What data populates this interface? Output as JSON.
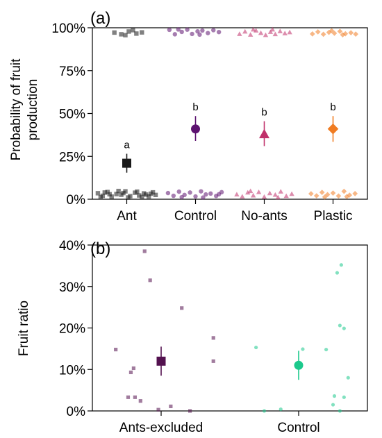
{
  "colors": {
    "ant": "#1a1a1a",
    "control_a": "#5c1270",
    "no_ants": "#c0306a",
    "plastic": "#f07c22",
    "ants_excluded": "#53114f",
    "control_b": "#1cc98c"
  },
  "chart_data": [
    {
      "panel": "(a)",
      "type": "scatter",
      "title": "",
      "xlabel": "",
      "ylabel": "Probability of fruit production",
      "ylabel_lines": [
        "Probability of fruit",
        "production"
      ],
      "categories": [
        "Ant",
        "Control",
        "No-ants",
        "Plastic"
      ],
      "ylim": [
        0,
        100
      ],
      "yticks": [
        0,
        25,
        50,
        75,
        100
      ],
      "ytick_labels": [
        "0%",
        "25%",
        "50%",
        "75%",
        "100%"
      ],
      "grid": false,
      "series": [
        {
          "category": "Ant",
          "marker": "square",
          "color_key": "ant",
          "estimate": 21,
          "ci": [
            15.5,
            26.5
          ],
          "letter": "a",
          "raw_points": [
            {
              "x": -0.18,
              "y": 97.2
            },
            {
              "x": -0.08,
              "y": 96.2
            },
            {
              "x": 0.03,
              "y": 97.8
            },
            {
              "x": 0.14,
              "y": 96.6
            },
            {
              "x": 0.22,
              "y": 97.3
            },
            {
              "x": -0.02,
              "y": 95.7
            },
            {
              "x": 0.09,
              "y": 98.6
            },
            {
              "x": -0.42,
              "y": 3.5
            },
            {
              "x": -0.35,
              "y": 2.0
            },
            {
              "x": -0.28,
              "y": 4.2
            },
            {
              "x": -0.22,
              "y": 1.5
            },
            {
              "x": -0.15,
              "y": 3.0
            },
            {
              "x": -0.08,
              "y": 2.6
            },
            {
              "x": -0.02,
              "y": 4.6
            },
            {
              "x": 0.05,
              "y": 1.8
            },
            {
              "x": 0.12,
              "y": 3.8
            },
            {
              "x": 0.18,
              "y": 2.2
            },
            {
              "x": 0.25,
              "y": 3.4
            },
            {
              "x": 0.32,
              "y": 1.6
            },
            {
              "x": 0.38,
              "y": 4.0
            },
            {
              "x": -0.38,
              "y": 1.2
            },
            {
              "x": -0.25,
              "y": 2.9
            },
            {
              "x": -0.12,
              "y": 4.8
            },
            {
              "x": 0.02,
              "y": 1.0
            },
            {
              "x": 0.15,
              "y": 4.4
            },
            {
              "x": 0.28,
              "y": 2.7
            },
            {
              "x": 0.35,
              "y": 3.2
            },
            {
              "x": -0.32,
              "y": 3.9
            },
            {
              "x": -0.05,
              "y": 3.6
            },
            {
              "x": 0.22,
              "y": 1.3
            },
            {
              "x": 0.42,
              "y": 2.5
            }
          ]
        },
        {
          "category": "Control",
          "marker": "circle",
          "color_key": "control_a",
          "estimate": 41,
          "ci": [
            34,
            48.5
          ],
          "letter": "b",
          "raw_points": [
            {
              "x": -0.38,
              "y": 98.8
            },
            {
              "x": -0.3,
              "y": 96.2
            },
            {
              "x": -0.2,
              "y": 97.6
            },
            {
              "x": -0.12,
              "y": 98.9
            },
            {
              "x": -0.05,
              "y": 96.4
            },
            {
              "x": 0.03,
              "y": 97.9
            },
            {
              "x": 0.1,
              "y": 98.4
            },
            {
              "x": 0.18,
              "y": 96.9
            },
            {
              "x": 0.26,
              "y": 98.6
            },
            {
              "x": 0.34,
              "y": 97.5
            },
            {
              "x": -0.25,
              "y": 99.0
            },
            {
              "x": 0.06,
              "y": 96.0
            },
            {
              "x": -0.4,
              "y": 3.6
            },
            {
              "x": -0.32,
              "y": 2.0
            },
            {
              "x": -0.24,
              "y": 4.4
            },
            {
              "x": -0.16,
              "y": 2.5
            },
            {
              "x": -0.08,
              "y": 3.9
            },
            {
              "x": 0.0,
              "y": 1.6
            },
            {
              "x": 0.08,
              "y": 4.6
            },
            {
              "x": 0.15,
              "y": 2.8
            },
            {
              "x": 0.22,
              "y": 3.3
            },
            {
              "x": 0.3,
              "y": 1.9
            },
            {
              "x": 0.38,
              "y": 4.1
            },
            {
              "x": -0.2,
              "y": 1.2
            },
            {
              "x": 0.11,
              "y": 1.0
            },
            {
              "x": 0.34,
              "y": 2.9
            }
          ]
        },
        {
          "category": "No-ants",
          "marker": "triangle",
          "color_key": "no_ants",
          "estimate": 38,
          "ci": [
            31,
            45.5
          ],
          "letter": "b",
          "raw_points": [
            {
              "x": -0.36,
              "y": 96.4
            },
            {
              "x": -0.28,
              "y": 97.8
            },
            {
              "x": -0.2,
              "y": 96.0
            },
            {
              "x": -0.12,
              "y": 98.4
            },
            {
              "x": -0.05,
              "y": 97.0
            },
            {
              "x": 0.02,
              "y": 95.8
            },
            {
              "x": 0.09,
              "y": 97.6
            },
            {
              "x": 0.16,
              "y": 96.3
            },
            {
              "x": 0.23,
              "y": 98.0
            },
            {
              "x": 0.3,
              "y": 96.8
            },
            {
              "x": 0.37,
              "y": 97.4
            },
            {
              "x": -0.16,
              "y": 99.0
            },
            {
              "x": 0.12,
              "y": 99.0
            },
            {
              "x": -0.4,
              "y": 2.8
            },
            {
              "x": -0.32,
              "y": 1.6
            },
            {
              "x": -0.24,
              "y": 3.9
            },
            {
              "x": -0.16,
              "y": 2.2
            },
            {
              "x": -0.08,
              "y": 4.2
            },
            {
              "x": 0.0,
              "y": 1.4
            },
            {
              "x": 0.08,
              "y": 3.5
            },
            {
              "x": 0.16,
              "y": 2.6
            },
            {
              "x": 0.24,
              "y": 4.5
            },
            {
              "x": 0.32,
              "y": 1.9
            },
            {
              "x": 0.4,
              "y": 3.1
            },
            {
              "x": -0.2,
              "y": 4.8
            },
            {
              "x": 0.2,
              "y": 1.1
            }
          ]
        },
        {
          "category": "Plastic",
          "marker": "diamond",
          "color_key": "plastic",
          "estimate": 41,
          "ci": [
            33.5,
            48.5
          ],
          "letter": "b",
          "raw_points": [
            {
              "x": -0.3,
              "y": 96.4
            },
            {
              "x": -0.22,
              "y": 97.6
            },
            {
              "x": -0.14,
              "y": 96.2
            },
            {
              "x": -0.06,
              "y": 97.3
            },
            {
              "x": 0.02,
              "y": 96.8
            },
            {
              "x": 0.1,
              "y": 97.9
            },
            {
              "x": 0.18,
              "y": 96.5
            },
            {
              "x": 0.26,
              "y": 97.1
            },
            {
              "x": 0.33,
              "y": 96.3
            },
            {
              "x": -0.02,
              "y": 98.3
            },
            {
              "x": 0.14,
              "y": 95.9
            },
            {
              "x": -0.32,
              "y": 3.2
            },
            {
              "x": -0.24,
              "y": 2.0
            },
            {
              "x": -0.16,
              "y": 4.0
            },
            {
              "x": -0.08,
              "y": 2.7
            },
            {
              "x": 0.0,
              "y": 3.6
            },
            {
              "x": 0.08,
              "y": 1.9
            },
            {
              "x": 0.16,
              "y": 4.6
            },
            {
              "x": 0.24,
              "y": 2.4
            },
            {
              "x": 0.32,
              "y": 3.3
            },
            {
              "x": -0.12,
              "y": 1.3
            },
            {
              "x": 0.2,
              "y": 1.5
            }
          ]
        }
      ]
    },
    {
      "panel": "(b)",
      "type": "scatter",
      "title": "",
      "xlabel": "",
      "ylabel": "Fruit ratio",
      "categories": [
        "Ants-excluded",
        "Control"
      ],
      "ylim": [
        0,
        40
      ],
      "yticks": [
        0,
        10,
        20,
        30,
        40
      ],
      "ytick_labels": [
        "0%",
        "10%",
        "20%",
        "30%",
        "40%"
      ],
      "grid": false,
      "series": [
        {
          "category": "Ants-excluded",
          "marker": "square",
          "color_key": "ants_excluded",
          "estimate": 12,
          "ci": [
            8.5,
            15.5
          ],
          "raw_points": [
            {
              "x": -0.12,
              "y": 38.5
            },
            {
              "x": -0.08,
              "y": 31.5
            },
            {
              "x": 0.15,
              "y": 24.8
            },
            {
              "x": 0.38,
              "y": 17.6
            },
            {
              "x": -0.33,
              "y": 14.8
            },
            {
              "x": 0.38,
              "y": 12.0
            },
            {
              "x": -0.2,
              "y": 10.3
            },
            {
              "x": -0.22,
              "y": 9.3
            },
            {
              "x": -0.24,
              "y": 3.3
            },
            {
              "x": -0.19,
              "y": 3.3
            },
            {
              "x": -0.15,
              "y": 2.4
            },
            {
              "x": 0.07,
              "y": 1.1
            },
            {
              "x": -0.02,
              "y": 0.3
            },
            {
              "x": 0.21,
              "y": 0.0
            }
          ]
        },
        {
          "category": "Control",
          "marker": "circle",
          "color_key": "control_b",
          "estimate": 11,
          "ci": [
            7.5,
            14.5
          ],
          "raw_points": [
            {
              "x": 0.31,
              "y": 35.2
            },
            {
              "x": 0.28,
              "y": 33.3
            },
            {
              "x": 0.3,
              "y": 20.6
            },
            {
              "x": 0.33,
              "y": 19.9
            },
            {
              "x": -0.31,
              "y": 15.3
            },
            {
              "x": 0.2,
              "y": 14.8
            },
            {
              "x": 0.03,
              "y": 14.9
            },
            {
              "x": 0.36,
              "y": 8.0
            },
            {
              "x": 0.26,
              "y": 3.6
            },
            {
              "x": 0.33,
              "y": 3.3
            },
            {
              "x": 0.25,
              "y": 1.5
            },
            {
              "x": -0.13,
              "y": 0.4
            },
            {
              "x": -0.25,
              "y": 0.0
            },
            {
              "x": 0.3,
              "y": 0.0
            }
          ]
        }
      ]
    }
  ]
}
